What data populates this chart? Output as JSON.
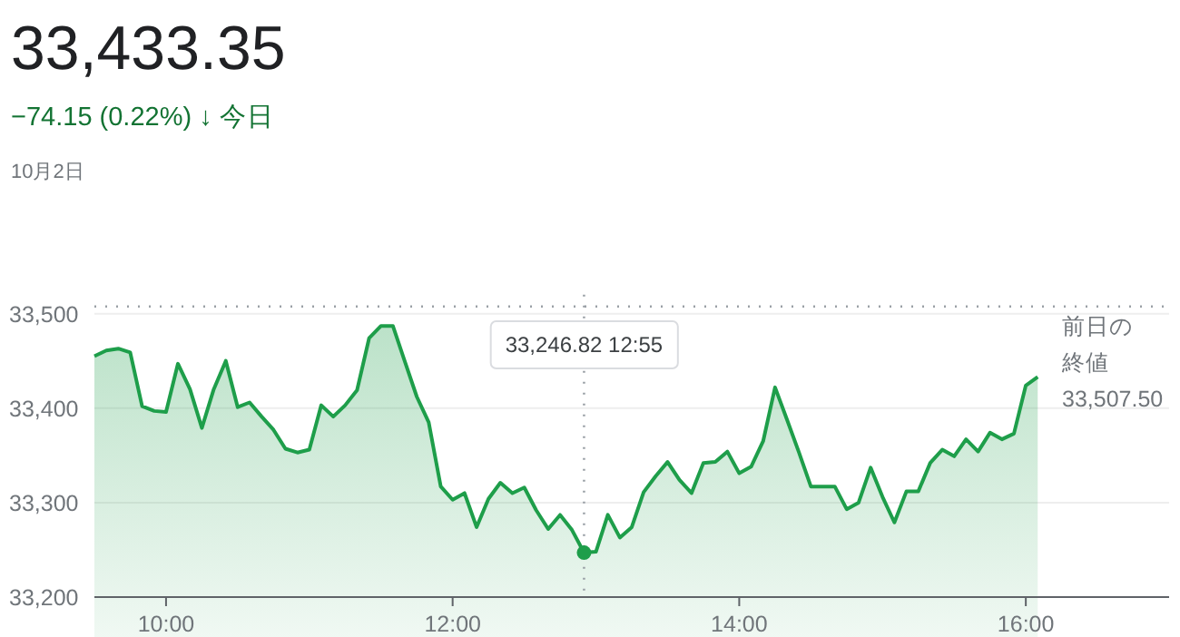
{
  "chart_data": {
    "type": "area",
    "title": "33,433.35",
    "subtitle": "−74.15 (0.22%) ↓ 今日",
    "annotations": [
      "10月2日",
      "33,246.82  12:55"
    ],
    "x": [
      9.5,
      9.583,
      9.667,
      9.75,
      9.833,
      9.917,
      10,
      10.083,
      10.167,
      10.25,
      10.333,
      10.417,
      10.5,
      10.583,
      10.667,
      10.75,
      10.833,
      10.917,
      11,
      11.083,
      11.167,
      11.25,
      11.333,
      11.417,
      11.5,
      11.583,
      11.667,
      11.75,
      11.833,
      11.917,
      12,
      12.083,
      12.167,
      12.25,
      12.333,
      12.417,
      12.5,
      12.583,
      12.667,
      12.75,
      12.833,
      12.917,
      13,
      13.083,
      13.167,
      13.25,
      13.333,
      13.417,
      13.5,
      13.583,
      13.667,
      13.75,
      13.833,
      13.917,
      14,
      14.083,
      14.167,
      14.25,
      14.333,
      14.417,
      14.5,
      14.583,
      14.667,
      14.75,
      14.833,
      14.917,
      15,
      15.083,
      15.167,
      15.25,
      15.333,
      15.417,
      15.5,
      15.583,
      15.667,
      15.75,
      15.833,
      15.917,
      16,
      16.083
    ],
    "series": [
      {
        "color": "#1e9e4a",
        "values": [
          33455,
          33461,
          33463,
          33459,
          33402,
          33397,
          33396,
          33447,
          33420,
          33379,
          33420,
          33450,
          33401,
          33406,
          33391,
          33377,
          33357,
          33353,
          33356,
          33403,
          33391,
          33403,
          33419,
          33474,
          33487,
          33487,
          33449,
          33412,
          33385,
          33317,
          33303,
          33310,
          33274,
          33304,
          33321,
          33310,
          33316,
          33292,
          33272,
          33287,
          33271,
          33247,
          33248,
          33287,
          33263,
          33274,
          33311,
          33328,
          33343,
          33324,
          33310,
          33342,
          33343,
          33354,
          33331,
          33338,
          33365,
          33422,
          33388,
          33353,
          33317,
          33317,
          33317,
          33293,
          33300,
          33337,
          33306,
          33279,
          33312,
          33312,
          33342,
          33356,
          33349,
          33367,
          33354,
          33374,
          33367,
          33373,
          33424,
          33433
        ]
      }
    ],
    "xlim": [
      9.5,
      17
    ],
    "ylim": [
      33200,
      33520
    ],
    "xticks": [
      {
        "value": 10,
        "label": "10:00"
      },
      {
        "value": 12,
        "label": "12:00"
      },
      {
        "value": 14,
        "label": "14:00"
      },
      {
        "value": 16,
        "label": "16:00"
      }
    ],
    "yticks": [
      {
        "value": 33200,
        "label": "33,200"
      },
      {
        "value": 33300,
        "label": "33,300"
      },
      {
        "value": 33400,
        "label": "33,400"
      },
      {
        "value": 33500,
        "label": "33,500"
      }
    ],
    "grid": "y",
    "marker": "none",
    "line_style": "solid",
    "ref_lines": [
      {
        "axis": "y",
        "value": 33507.5,
        "label": "前日の終値33,507.50",
        "line_style": "dotted",
        "color": "#9aa0a6"
      },
      {
        "axis": "x",
        "value": 12.917,
        "line_style": "dotted",
        "color": "#9aa0a6"
      }
    ]
  }
}
